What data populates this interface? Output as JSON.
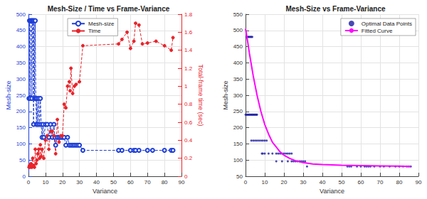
{
  "chart_data": [
    {
      "type": "line",
      "title": "Mesh-Size / Time vs Frame-Variance",
      "x_label": "Variance",
      "y_label": "Mesh-size",
      "y2_label": "Total-frame time (sec)",
      "xlim": [
        0,
        90
      ],
      "xticks": [
        0,
        10,
        20,
        30,
        40,
        50,
        60,
        70,
        80,
        90
      ],
      "ylim": [
        0,
        500
      ],
      "yticks": [
        0,
        50,
        100,
        150,
        200,
        250,
        300,
        350,
        400,
        450,
        500
      ],
      "y2lim": [
        0,
        1.8
      ],
      "y2ticks": [
        0,
        0.2,
        0.4,
        0.6,
        0.8,
        1,
        1.2,
        1.4,
        1.6,
        1.8
      ],
      "grid": true,
      "legend": "top",
      "series": [
        {
          "name": "Mesh-size",
          "color": "#1f3fd8",
          "marker": "circle",
          "line_style": "dashed",
          "x": [
            0.3,
            0.6,
            1,
            1.3,
            1.7,
            2,
            2.3,
            2.7,
            3,
            3.3,
            3.6,
            4,
            4.3,
            4.7,
            5,
            5.5,
            6,
            6.5,
            7,
            7.5,
            8,
            8.5,
            9,
            10,
            11,
            12,
            13,
            14,
            15,
            15.5,
            16,
            17,
            18,
            19,
            20,
            21,
            22,
            23,
            24,
            25,
            26,
            27,
            28,
            29,
            30,
            32,
            53,
            55,
            60,
            62,
            63,
            65,
            70,
            73,
            80,
            84,
            85
          ],
          "values": [
            240,
            480,
            240,
            480,
            480,
            240,
            480,
            480,
            160,
            480,
            240,
            480,
            240,
            160,
            240,
            160,
            240,
            160,
            240,
            160,
            120,
            160,
            120,
            160,
            160,
            120,
            160,
            120,
            160,
            120,
            96,
            120,
            120,
            120,
            120,
            120,
            96,
            120,
            96,
            96,
            96,
            96,
            96,
            96,
            96,
            80,
            80,
            80,
            80,
            80,
            80,
            80,
            80,
            80,
            80,
            80,
            80
          ]
        },
        {
          "name": "Time",
          "color": "#e8232a",
          "marker": "dot",
          "line_style": "dashed",
          "axis": "y2",
          "x": [
            0.3,
            0.6,
            1,
            1.5,
            2,
            2.5,
            3,
            3.5,
            4,
            4.5,
            5,
            5.5,
            6,
            6.5,
            7,
            7.5,
            8,
            9,
            10,
            11,
            12,
            13,
            14,
            15,
            16,
            17,
            18,
            19,
            20,
            21,
            22,
            23,
            24,
            24.5,
            25,
            26,
            27,
            28,
            30,
            32,
            53,
            55,
            58,
            60,
            62,
            63,
            65,
            67,
            70,
            75,
            80,
            84,
            85
          ],
          "values": [
            0.1,
            0.12,
            0.1,
            0.14,
            0.1,
            0.2,
            0.12,
            0.1,
            0.3,
            0.14,
            0.18,
            0.25,
            0.3,
            0.2,
            0.35,
            0.22,
            0.3,
            0.2,
            0.4,
            0.45,
            0.3,
            0.5,
            0.5,
            0.45,
            0.25,
            0.63,
            0.38,
            0.45,
            0.45,
            0.8,
            0.76,
            1,
            1.05,
            0.95,
            1.2,
            0.92,
            1,
            1.02,
            1.05,
            1.45,
            1.47,
            1.52,
            1.6,
            1.42,
            1.5,
            1.7,
            1.68,
            1.47,
            1.48,
            1.5,
            1.45,
            1.4,
            1.54
          ]
        }
      ]
    },
    {
      "type": "scatter",
      "title": "Mesh-Size vs Frame-Variance",
      "x_label": "Variance",
      "y_label": "Mesh-size",
      "xlim": [
        0,
        90
      ],
      "xticks": [
        0,
        10,
        20,
        30,
        40,
        50,
        60,
        70,
        80,
        90
      ],
      "ylim": [
        50,
        550
      ],
      "yticks": [
        50,
        100,
        150,
        200,
        250,
        300,
        350,
        400,
        450,
        500,
        550
      ],
      "grid": true,
      "legend": "top-right",
      "series": [
        {
          "name": "Optimal Data Points",
          "type": "scatter",
          "color": "#1a1aa0",
          "marker": "dot",
          "x": [
            0.5,
            1,
            1.5,
            2,
            2.5,
            3,
            3.5,
            0,
            0.5,
            1,
            1.5,
            2,
            2.5,
            3,
            3.5,
            4,
            4.5,
            5,
            5.5,
            6,
            3,
            4,
            5,
            6,
            7,
            8,
            9,
            10,
            11,
            8.5,
            9,
            10,
            12,
            14,
            16,
            17,
            18,
            19,
            20,
            21,
            22,
            23,
            24,
            16,
            19,
            22,
            24,
            25,
            26,
            27,
            28,
            29,
            30,
            31,
            32,
            53,
            54,
            55,
            58,
            60,
            62,
            63,
            64,
            65,
            67,
            70,
            72,
            75,
            78,
            80,
            82,
            84,
            85,
            86
          ],
          "values": [
            480,
            480,
            480,
            480,
            480,
            480,
            480,
            240,
            240,
            240,
            240,
            240,
            240,
            240,
            240,
            240,
            240,
            240,
            240,
            240,
            160,
            160,
            160,
            160,
            160,
            160,
            160,
            160,
            160,
            120,
            120,
            120,
            120,
            120,
            120,
            120,
            120,
            120,
            120,
            120,
            120,
            120,
            120,
            96,
            96,
            96,
            96,
            96,
            96,
            96,
            96,
            96,
            96,
            96,
            80,
            80,
            80,
            80,
            80,
            80,
            80,
            80,
            80,
            80,
            80,
            80,
            80,
            80,
            80,
            80,
            80,
            80,
            80,
            80
          ]
        },
        {
          "name": "Fitted Curve",
          "type": "line",
          "color": "#ff00ff",
          "line_style": "solid",
          "x": [
            0,
            1,
            2,
            3,
            4,
            5,
            6,
            7,
            8,
            9,
            10,
            12,
            14,
            16,
            18,
            20,
            23,
            26,
            30,
            35,
            40,
            50,
            60,
            70,
            80,
            86
          ],
          "values": [
            505,
            470,
            430,
            395,
            360,
            330,
            300,
            275,
            250,
            230,
            210,
            180,
            155,
            140,
            125,
            115,
            105,
            98,
            92,
            88,
            86,
            84,
            83,
            82,
            81,
            80
          ]
        }
      ]
    }
  ]
}
